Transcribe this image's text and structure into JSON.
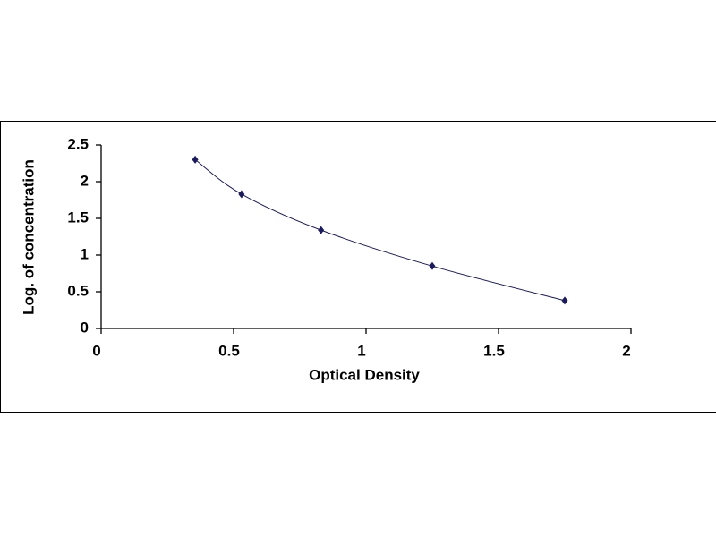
{
  "chart_data": {
    "type": "scatter",
    "x_label": "Optical Density",
    "y_label": "Log. of concentration",
    "x": [
      0.355,
      0.53,
      0.83,
      1.25,
      1.75
    ],
    "values": [
      2.3,
      1.83,
      1.34,
      0.85,
      0.38
    ],
    "color": "#1a1a5e",
    "line_color": "#1a1a5e",
    "smooth_line": true,
    "xlim": [
      0,
      2
    ],
    "xticks": [
      0,
      0.5,
      1,
      1.5,
      2
    ],
    "ylim": [
      0,
      2.5
    ],
    "yticks": [
      0,
      0.5,
      1,
      1.5,
      2,
      2.5
    ],
    "grid": false
  }
}
